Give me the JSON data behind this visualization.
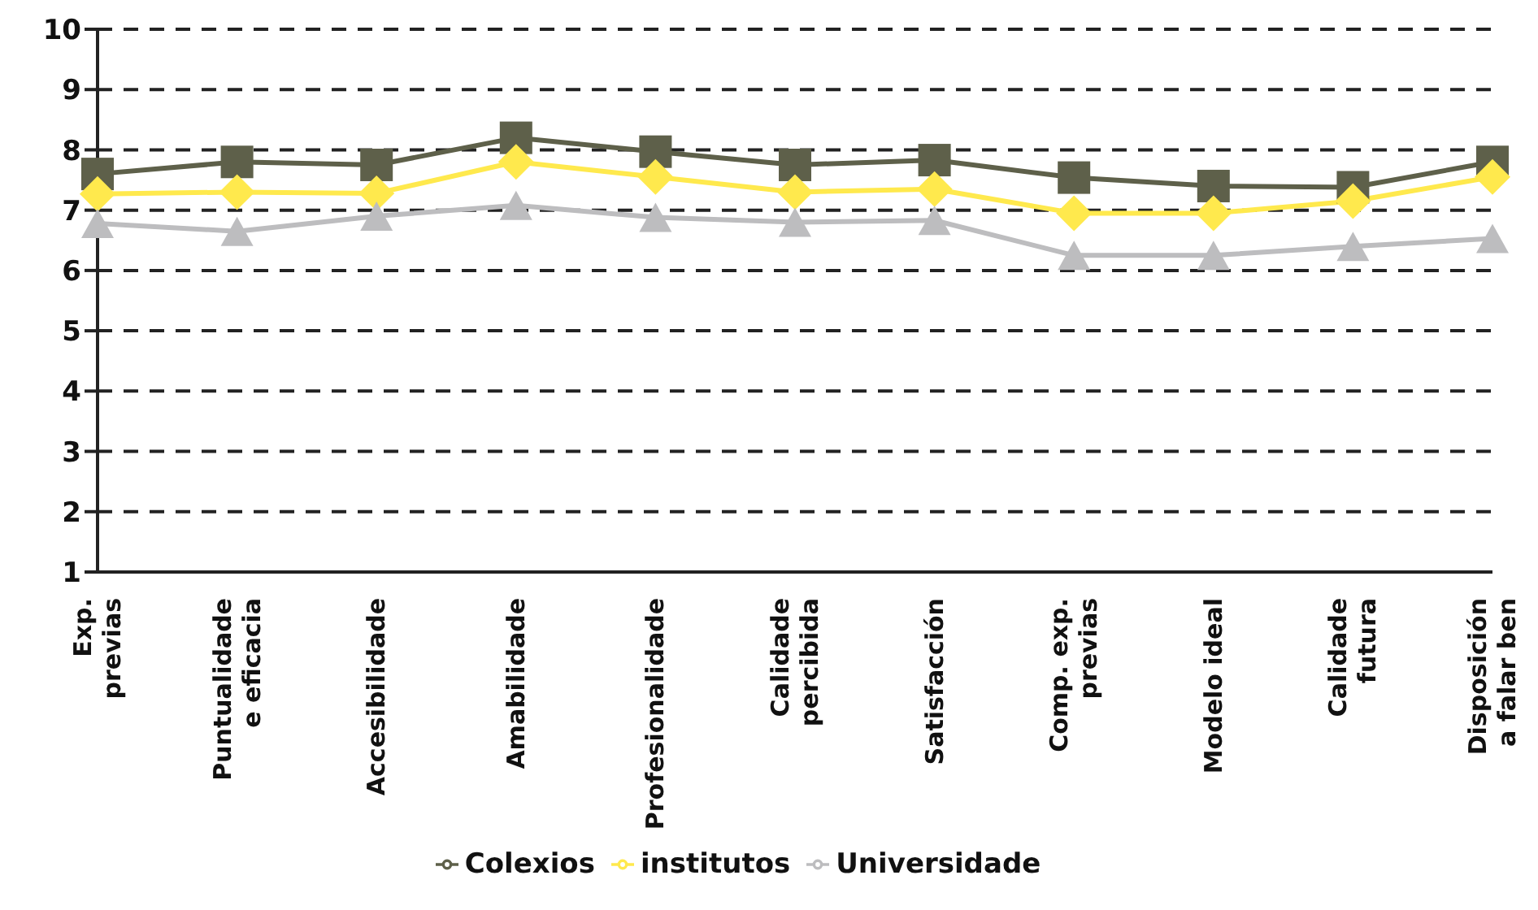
{
  "chart_data": {
    "type": "line",
    "categories": [
      "Exp.\nprevias",
      "Puntualidade\ne eficacia",
      "Accesibilidade",
      "Amabilidade",
      "Profesionalidade",
      "Calidade\npercibida",
      "Satisfacción",
      "Comp. exp.\nprevias",
      "Modelo ideal",
      "Calidade\nfutura",
      "Disposición\na falar ben"
    ],
    "series": [
      {
        "name": "Colexios",
        "color": "#5e604a",
        "marker": "square",
        "values": [
          7.6,
          7.8,
          7.75,
          8.2,
          7.97,
          7.75,
          7.83,
          7.54,
          7.4,
          7.38,
          7.8
        ]
      },
      {
        "name": "institutos",
        "color": "#ffe94d",
        "marker": "diamond",
        "values": [
          7.27,
          7.3,
          7.28,
          7.8,
          7.55,
          7.3,
          7.35,
          6.95,
          6.95,
          7.15,
          7.55
        ]
      },
      {
        "name": "Universidade",
        "color": "#bdbdbf",
        "marker": "triangle",
        "values": [
          6.78,
          6.65,
          6.9,
          7.08,
          6.88,
          6.8,
          6.83,
          6.25,
          6.25,
          6.4,
          6.53
        ]
      }
    ],
    "ylim": [
      1,
      10
    ],
    "yticks": [
      1,
      2,
      3,
      4,
      5,
      6,
      7,
      8,
      9,
      10
    ],
    "grid": "y",
    "legend": "bottom"
  }
}
